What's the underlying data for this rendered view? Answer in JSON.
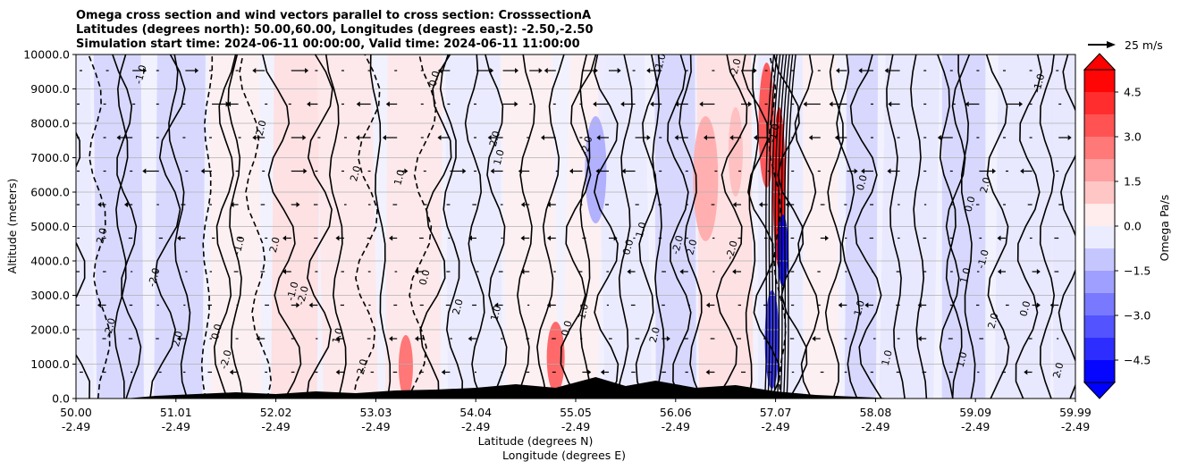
{
  "chart_data": {
    "type": "contour",
    "title_lines": [
      "Omega cross section and wind vectors parallel to cross section: CrosssectionA",
      "Latitudes (degrees north): 50.00,60.00, Longitudes (degrees east): -2.50,-2.50",
      "Simulation start time: 2024-06-11 00:00:00, Valid time: 2024-06-11 11:00:00"
    ],
    "ylabel": "Altitude (meters)",
    "xlabel_lat": "Latitude (degrees N)",
    "xlabel_lon": "Longitude (degrees E)",
    "ylim": [
      0,
      10000
    ],
    "y_ticks": [
      "0.0",
      "1000.0",
      "2000.0",
      "3000.0",
      "4000.0",
      "5000.0",
      "6000.0",
      "7000.0",
      "8000.0",
      "9000.0",
      "10000.0"
    ],
    "x_ticks_lat": [
      "50.00",
      "51.01",
      "52.02",
      "53.03",
      "54.04",
      "55.05",
      "56.06",
      "57.07",
      "58.08",
      "59.09",
      "59.99"
    ],
    "x_ticks_lon": [
      "-2.49",
      "-2.49",
      "-2.49",
      "-2.49",
      "-2.49",
      "-2.49",
      "-2.49",
      "-2.49",
      "-2.49",
      "-2.49",
      "-2.49"
    ],
    "xlim_lat": [
      50.0,
      59.99
    ],
    "colorbar": {
      "label": "Omega Pa/s",
      "range": [
        -5.25,
        5.25
      ],
      "tick_labels": [
        "4.5",
        "3.0",
        "1.5",
        "0.0",
        "−1.5",
        "−3.0",
        "−4.5"
      ],
      "tick_values": [
        4.5,
        3.0,
        1.5,
        0.0,
        -1.5,
        -3.0,
        -4.5
      ],
      "levels": [
        -5.25,
        -4.5,
        -3.75,
        -3.0,
        -2.25,
        -1.5,
        -0.75,
        0,
        0.75,
        1.5,
        2.25,
        3.0,
        3.75,
        4.5,
        5.25
      ]
    },
    "vector_key": {
      "label": "25 m/s",
      "speed": 25
    },
    "contour_labels": [
      "0.0",
      "1.0",
      "-1.0",
      "2.0",
      "-2.0"
    ]
  },
  "colors": {
    "positive": "#ff0000",
    "negative": "#0000ff",
    "contour": "#000000",
    "terrain": "#000000",
    "grid": "#b0b0b0"
  }
}
